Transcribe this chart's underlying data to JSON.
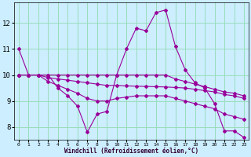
{
  "xlabel": "Windchill (Refroidissement éolien,°C)",
  "bg_color": "#cceeff",
  "grid_color": "#99ddbb",
  "line_color": "#990099",
  "x_ticks": [
    0,
    1,
    2,
    3,
    4,
    5,
    6,
    7,
    8,
    9,
    10,
    11,
    12,
    13,
    14,
    15,
    16,
    17,
    18,
    19,
    20,
    21,
    22,
    23
  ],
  "y_ticks": [
    8,
    9,
    10,
    11,
    12
  ],
  "xlim": [
    -0.5,
    23.5
  ],
  "ylim": [
    7.5,
    12.8
  ],
  "line1": [
    11.0,
    10.0,
    10.0,
    10.0,
    9.5,
    9.2,
    8.8,
    7.8,
    8.5,
    8.6,
    10.0,
    11.0,
    11.8,
    11.7,
    12.4,
    12.5,
    11.1,
    10.2,
    9.7,
    9.5,
    8.9,
    7.85,
    7.85,
    7.6
  ],
  "line2": [
    10.0,
    10.0,
    10.0,
    10.0,
    10.0,
    10.0,
    10.0,
    10.0,
    10.0,
    10.0,
    10.0,
    10.0,
    10.0,
    10.0,
    10.0,
    10.0,
    9.85,
    9.75,
    9.65,
    9.55,
    9.45,
    9.35,
    9.3,
    9.2
  ],
  "line3": [
    10.0,
    10.0,
    10.0,
    9.9,
    9.85,
    9.8,
    9.75,
    9.7,
    9.65,
    9.6,
    9.6,
    9.58,
    9.57,
    9.56,
    9.55,
    9.54,
    9.52,
    9.5,
    9.45,
    9.4,
    9.35,
    9.25,
    9.2,
    9.1
  ],
  "line4": [
    10.0,
    10.0,
    10.0,
    9.75,
    9.6,
    9.45,
    9.3,
    9.1,
    9.0,
    9.0,
    9.1,
    9.15,
    9.2,
    9.2,
    9.2,
    9.2,
    9.1,
    9.0,
    8.9,
    8.8,
    8.7,
    8.5,
    8.4,
    8.3
  ]
}
